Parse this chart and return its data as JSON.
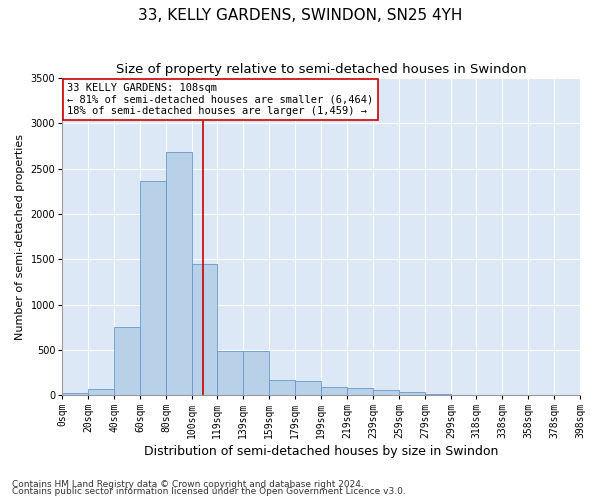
{
  "title": "33, KELLY GARDENS, SWINDON, SN25 4YH",
  "subtitle": "Size of property relative to semi-detached houses in Swindon",
  "xlabel": "Distribution of semi-detached houses by size in Swindon",
  "ylabel": "Number of semi-detached properties",
  "footnote1": "Contains HM Land Registry data © Crown copyright and database right 2024.",
  "footnote2": "Contains public sector information licensed under the Open Government Licence v3.0.",
  "property_size": 108,
  "annotation_title": "33 KELLY GARDENS: 108sqm",
  "annotation_line1": "← 81% of semi-detached houses are smaller (6,464)",
  "annotation_line2": "18% of semi-detached houses are larger (1,459) →",
  "bar_edges": [
    0,
    20,
    40,
    60,
    80,
    100,
    119,
    139,
    159,
    179,
    199,
    219,
    239,
    259,
    279,
    299,
    318,
    338,
    358,
    378,
    398
  ],
  "bar_heights": [
    30,
    70,
    750,
    2360,
    2680,
    1450,
    490,
    490,
    165,
    155,
    90,
    85,
    55,
    40,
    20,
    8,
    5,
    3,
    2,
    1
  ],
  "bar_color": "#b8d0e8",
  "bar_edge_color": "#6699cc",
  "line_color": "#cc0000",
  "ylim": [
    0,
    3500
  ],
  "xlim": [
    0,
    398
  ],
  "yticks": [
    0,
    500,
    1000,
    1500,
    2000,
    2500,
    3000,
    3500
  ],
  "background_color": "#dce8f5",
  "fig_background_color": "#ffffff",
  "grid_color": "#ffffff",
  "annotation_box_color": "#ffffff",
  "annotation_box_edge": "#cc0000",
  "title_fontsize": 11,
  "subtitle_fontsize": 9.5,
  "xlabel_fontsize": 9,
  "ylabel_fontsize": 8,
  "tick_fontsize": 7,
  "annotation_fontsize": 7.5
}
